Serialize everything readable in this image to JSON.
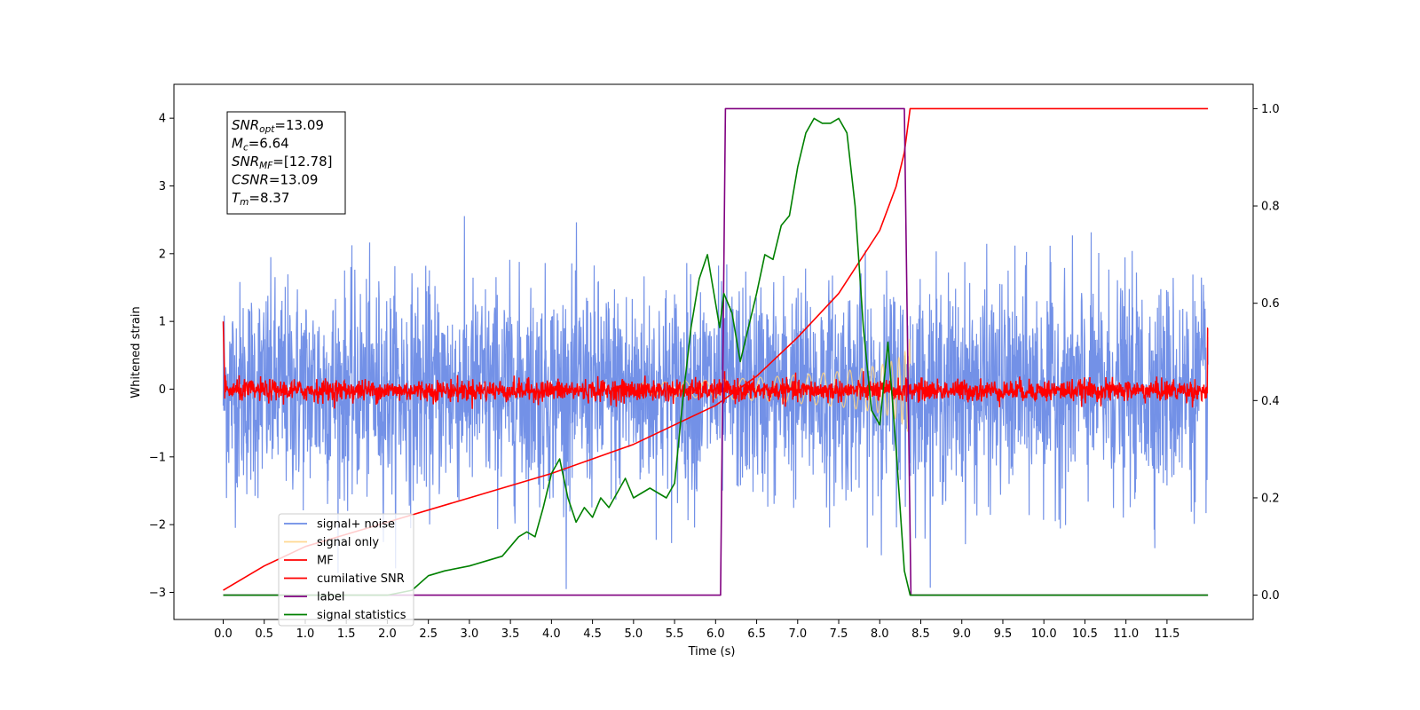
{
  "chart_data": {
    "type": "line",
    "title": "",
    "xlabel": "Time (s)",
    "ylabel": "Whitened strain",
    "y2label": "",
    "xlim": [
      -0.6,
      12.55
    ],
    "ylim": [
      -3.4,
      4.5
    ],
    "y2lim": [
      -0.05,
      1.05
    ],
    "x_ticks": [
      0.0,
      0.5,
      1.0,
      1.5,
      2.0,
      2.5,
      3.0,
      3.5,
      4.0,
      4.5,
      5.0,
      5.5,
      6.0,
      6.5,
      7.0,
      7.5,
      8.0,
      8.5,
      9.0,
      9.5,
      10.0,
      10.5,
      11.0,
      11.5
    ],
    "x_tick_labels": [
      "0.0",
      "0.5",
      "1.0",
      "1.5",
      "2.0",
      "2.5",
      "3.0",
      "3.5",
      "4.0",
      "4.5",
      "5.0",
      "5.5",
      "6.0",
      "6.5",
      "7.0",
      "7.5",
      "8.0",
      "8.5",
      "9.0",
      "9.5",
      "10.0",
      "10.5",
      "11.0",
      "11.5"
    ],
    "y_ticks": [
      -3,
      -2,
      -1,
      0,
      1,
      2,
      3,
      4
    ],
    "y_tick_labels": [
      "−3",
      "−2",
      "−1",
      "0",
      "1",
      "2",
      "3",
      "4"
    ],
    "y2_ticks": [
      0.0,
      0.2,
      0.4,
      0.6,
      0.8,
      1.0
    ],
    "y2_tick_labels": [
      "0.0",
      "0.2",
      "0.4",
      "0.6",
      "0.8",
      "1.0"
    ],
    "legend_position": "lower-left",
    "grid": false,
    "legend": [
      {
        "name": "signal+ noise",
        "color": "#6b8be6"
      },
      {
        "name": "signal only",
        "color": "#ffd27f"
      },
      {
        "name": "MF",
        "color": "#ff0000"
      },
      {
        "name": "cumilative SNR",
        "color": "#ff0000"
      },
      {
        "name": "label",
        "color": "#800080"
      },
      {
        "name": "signal statistics",
        "color": "#008000"
      }
    ],
    "annotation": {
      "lines": [
        {
          "sym": "SNR",
          "sub": "opt",
          "value": "=13.09"
        },
        {
          "sym": "M",
          "sub": "c",
          "value": "=6.64"
        },
        {
          "sym": "SNR",
          "sub": "MF",
          "value": "=[12.78]"
        },
        {
          "sym": "CSNR",
          "sub": "",
          "value": "=13.09"
        },
        {
          "sym": "T",
          "sub": "m",
          "value": "=8.37"
        }
      ]
    },
    "series": [
      {
        "name": "signal+ noise",
        "axis": "left",
        "color": "#6b8be6",
        "x_range": [
          0.0,
          12.0
        ],
        "envelope": [
          1.6,
          2.6
        ],
        "description": "dense whitened noise band"
      },
      {
        "name": "signal only",
        "axis": "left",
        "color": "#ffd27f",
        "x_range": [
          5.0,
          8.37
        ],
        "amplitude_end": 0.8
      },
      {
        "name": "MF",
        "axis": "left",
        "color": "#ff0000",
        "x_range": [
          0.0,
          12.0
        ],
        "noise_amplitude": 0.08
      },
      {
        "name": "cumilative SNR",
        "axis": "right",
        "color": "#ff0000",
        "x": [
          0.0,
          0.5,
          1.0,
          2.0,
          3.0,
          4.0,
          5.0,
          5.5,
          6.0,
          6.5,
          7.0,
          7.5,
          8.0,
          8.2,
          8.3,
          8.37,
          12.0
        ],
        "y": [
          0.01,
          0.06,
          0.1,
          0.15,
          0.2,
          0.25,
          0.31,
          0.35,
          0.39,
          0.45,
          0.53,
          0.62,
          0.75,
          0.84,
          0.91,
          1.0,
          1.0
        ]
      },
      {
        "name": "label",
        "axis": "right",
        "color": "#800080",
        "x": [
          0.0,
          6.06,
          6.12,
          8.3,
          8.38,
          12.0
        ],
        "y": [
          0.0,
          0.0,
          1.0,
          1.0,
          0.0,
          0.0
        ]
      },
      {
        "name": "signal statistics",
        "axis": "right",
        "color": "#008000",
        "x": [
          0.0,
          2.0,
          2.3,
          2.5,
          2.7,
          3.0,
          3.2,
          3.4,
          3.6,
          3.7,
          3.8,
          3.9,
          4.0,
          4.1,
          4.2,
          4.3,
          4.4,
          4.5,
          4.6,
          4.7,
          4.8,
          4.9,
          5.0,
          5.2,
          5.4,
          5.5,
          5.6,
          5.7,
          5.8,
          5.9,
          6.0,
          6.05,
          6.1,
          6.2,
          6.3,
          6.4,
          6.5,
          6.6,
          6.7,
          6.8,
          6.9,
          7.0,
          7.1,
          7.2,
          7.3,
          7.4,
          7.5,
          7.6,
          7.7,
          7.8,
          7.9,
          8.0,
          8.1,
          8.2,
          8.3,
          8.37,
          12.0
        ],
        "y": [
          0.0,
          0.0,
          0.01,
          0.04,
          0.05,
          0.06,
          0.07,
          0.08,
          0.12,
          0.13,
          0.12,
          0.18,
          0.25,
          0.28,
          0.2,
          0.15,
          0.18,
          0.16,
          0.2,
          0.18,
          0.21,
          0.24,
          0.2,
          0.22,
          0.2,
          0.23,
          0.4,
          0.55,
          0.65,
          0.7,
          0.6,
          0.55,
          0.62,
          0.58,
          0.48,
          0.55,
          0.62,
          0.7,
          0.69,
          0.76,
          0.78,
          0.88,
          0.95,
          0.98,
          0.97,
          0.97,
          0.98,
          0.95,
          0.8,
          0.55,
          0.38,
          0.35,
          0.52,
          0.3,
          0.05,
          0.0,
          0.0
        ]
      }
    ]
  }
}
